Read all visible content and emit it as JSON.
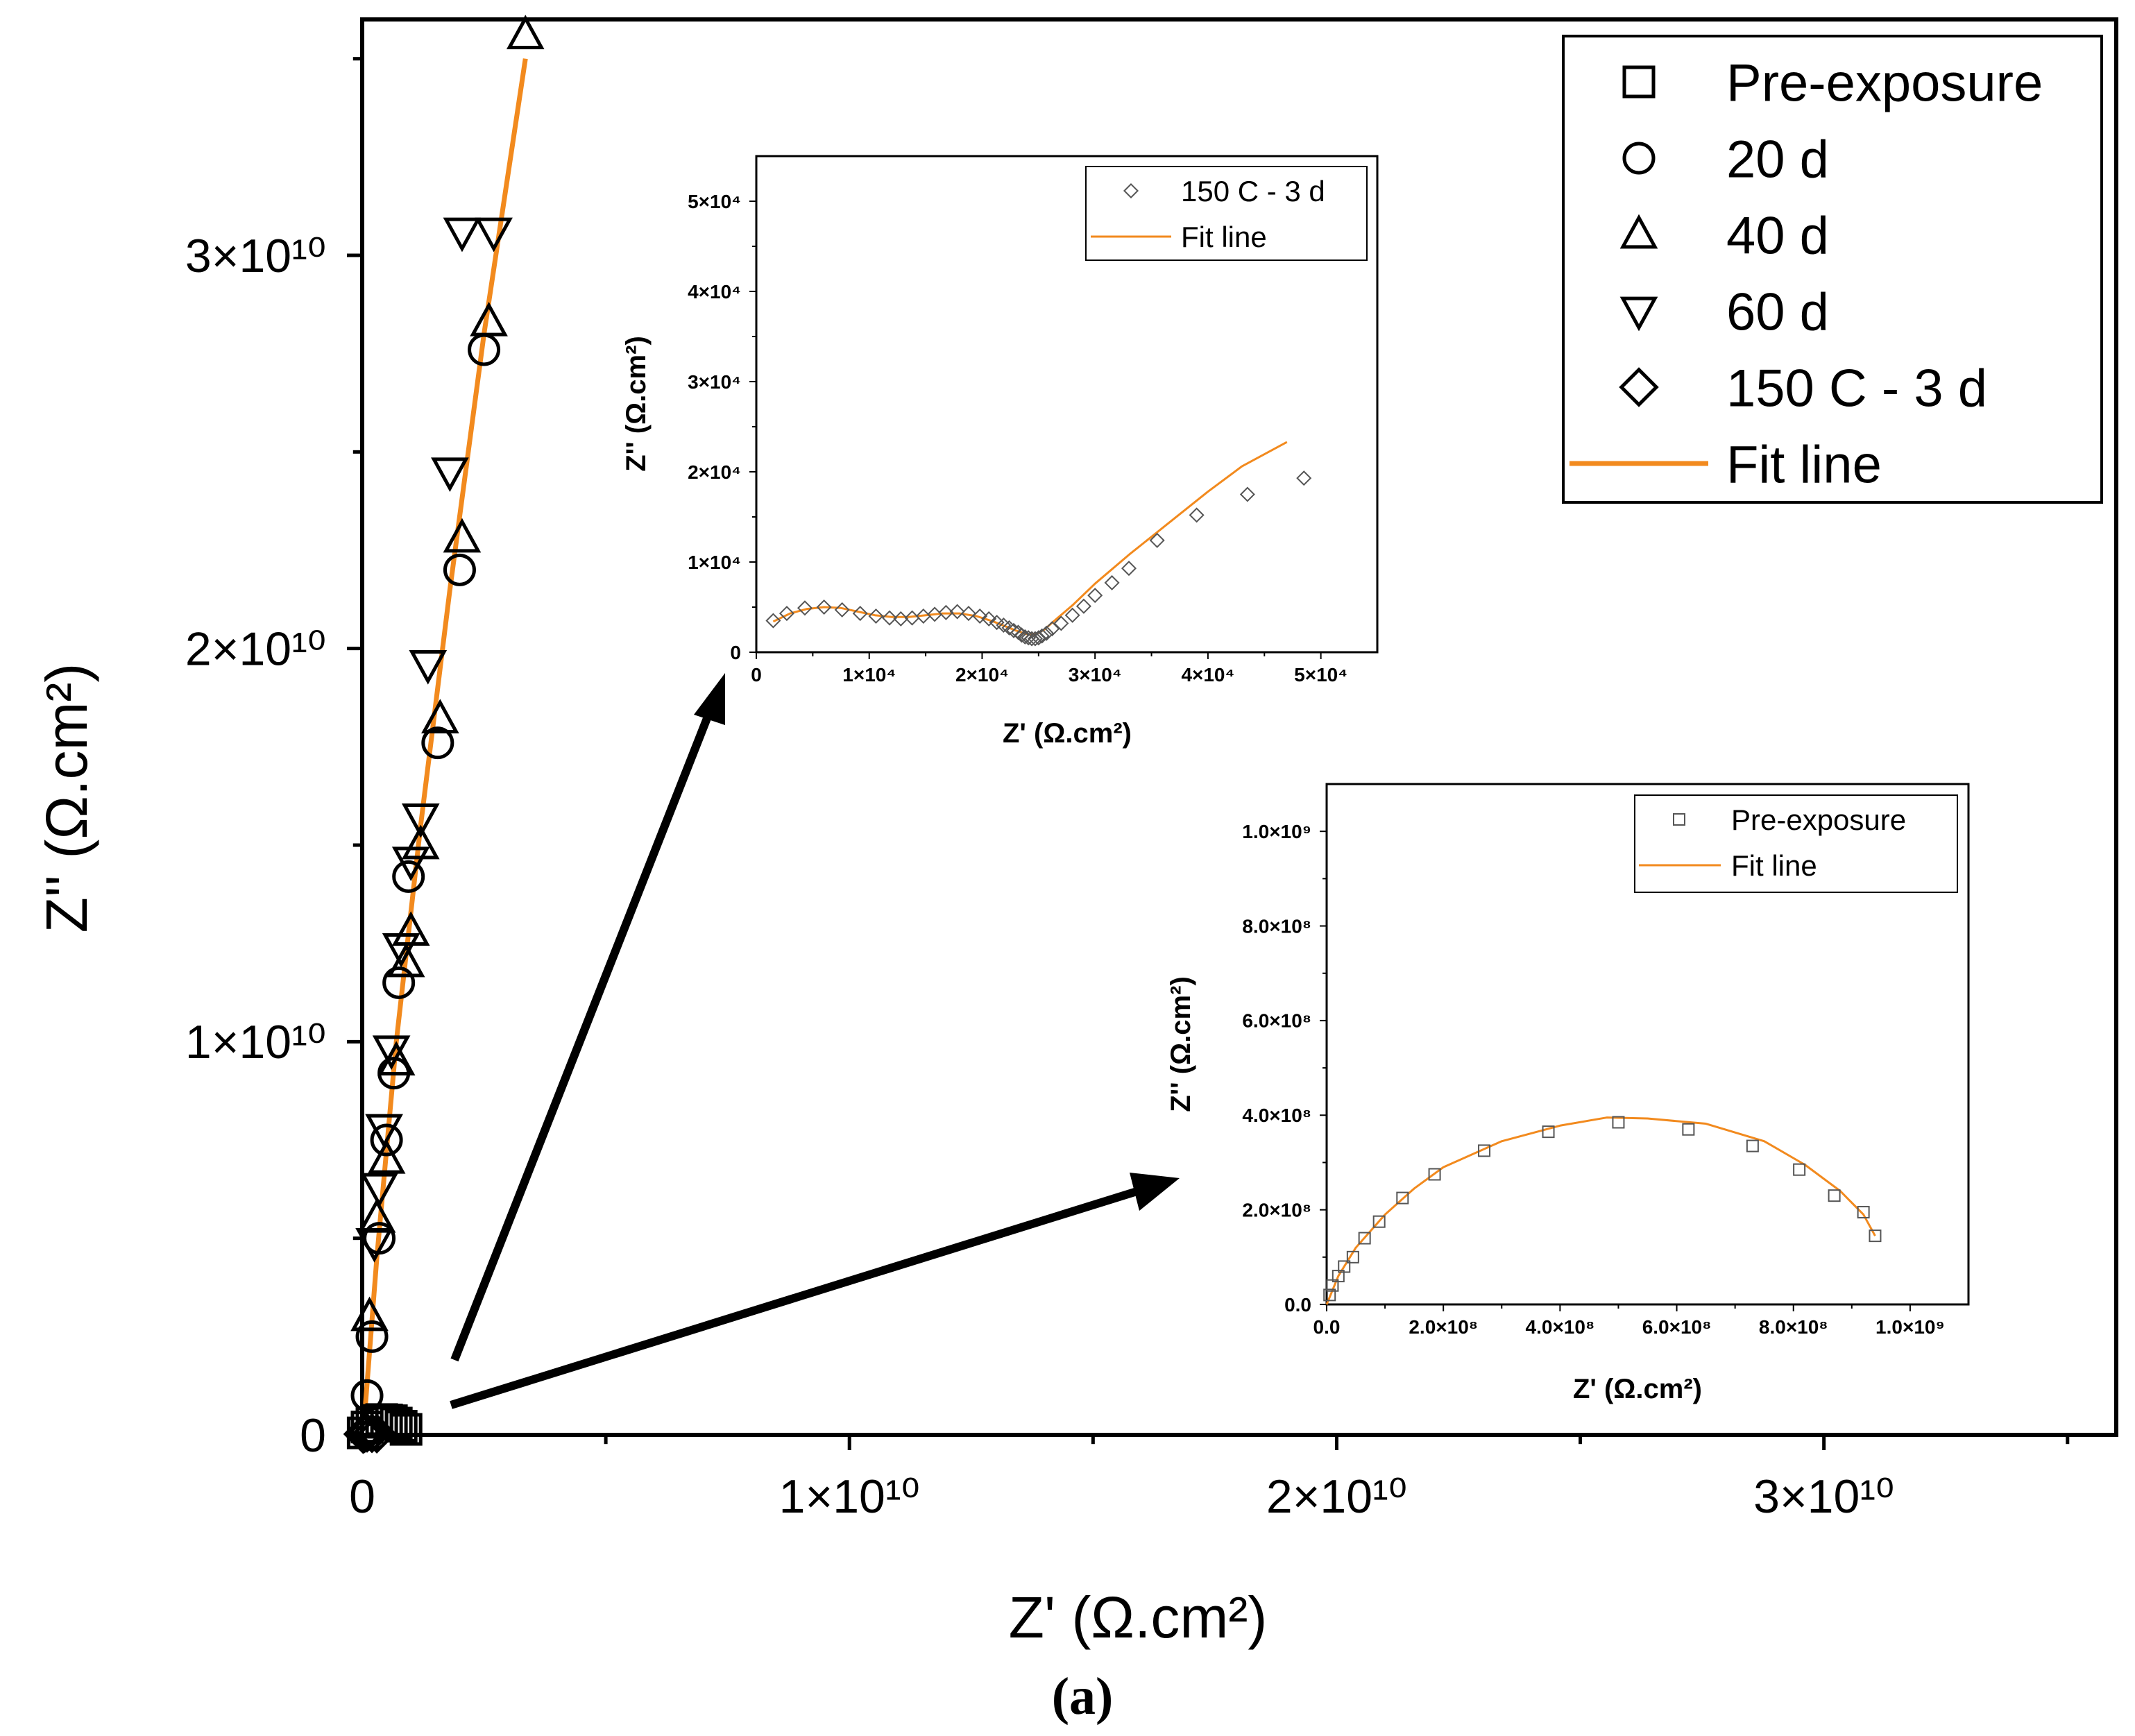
{
  "caption": "(a)",
  "colors": {
    "fit": "#F28A1E",
    "marker": "#000000",
    "inset_marker": "#555555",
    "axis": "#000000",
    "background": "#FFFFFF"
  },
  "chart_data": [
    {
      "id": "main",
      "type": "scatter",
      "title": "",
      "xlabel": "Z' (Ω.cm²)",
      "ylabel": "Z'' (Ω.cm²)",
      "xlim": [
        0,
        36000000000.0
      ],
      "ylim": [
        0,
        36000000000.0
      ],
      "xticks": [
        {
          "value": 0,
          "label": "0"
        },
        {
          "value": 10000000000.0,
          "label": "1×10¹⁰"
        },
        {
          "value": 20000000000.0,
          "label": "2×10¹⁰"
        },
        {
          "value": 30000000000.0,
          "label": "3×10¹⁰"
        }
      ],
      "yticks": [
        {
          "value": 0,
          "label": "0"
        },
        {
          "value": 10000000000.0,
          "label": "1×10¹⁰"
        },
        {
          "value": 20000000000.0,
          "label": "2×10¹⁰"
        },
        {
          "value": 30000000000.0,
          "label": "3×10¹⁰"
        }
      ],
      "legend": {
        "position": "top-right",
        "entries": [
          {
            "label": "Pre-exposure",
            "marker": "square"
          },
          {
            "label": "20 d",
            "marker": "circle"
          },
          {
            "label": "40 d",
            "marker": "triangle-up"
          },
          {
            "label": "60 d",
            "marker": "triangle-down"
          },
          {
            "label": "150 C - 3 d",
            "marker": "diamond"
          },
          {
            "label": "Fit line",
            "marker": "line"
          }
        ]
      },
      "series": [
        {
          "name": "Pre-exposure",
          "marker": "square",
          "x": [
            20000000.0,
            100000000.0,
            200000000.0,
            300000000.0,
            400000000.0,
            500000000.0,
            600000000.0,
            700000000.0,
            800000000.0,
            900000000.0
          ],
          "y": [
            50000000.0,
            200000000.0,
            320000000.0,
            370000000.0,
            390000000.0,
            380000000.0,
            360000000.0,
            300000000.0,
            220000000.0,
            140000000.0
          ]
        },
        {
          "name": "20 d",
          "marker": "circle",
          "x": [
            100000000.0,
            200000000.0,
            350000000.0,
            500000000.0,
            650000000.0,
            750000000.0,
            950000000.0,
            1550000000.0,
            2000000000.0,
            2500000000.0
          ],
          "y": [
            1000000000.0,
            2500000000.0,
            5000000000.0,
            7500000000.0,
            9200000000.0,
            11500000000.0,
            14200000000.0,
            17600000000.0,
            22000000000.0,
            27600000000.0
          ]
        },
        {
          "name": "40 d",
          "marker": "triangle-up",
          "x": [
            150000000.0,
            300000000.0,
            500000000.0,
            700000000.0,
            900000000.0,
            1000000000.0,
            1200000000.0,
            1600000000.0,
            2050000000.0,
            2600000000.0,
            3350000000.0
          ],
          "y": [
            3000000000.0,
            5500000000.0,
            7000000000.0,
            9500000000.0,
            12000000000.0,
            12800000000.0,
            15000000000.0,
            18200000000.0,
            22800000000.0,
            28300000000.0,
            35600000000.0
          ]
        },
        {
          "name": "60 d",
          "marker": "triangle-down",
          "x": [
            250000000.0,
            350000000.0,
            450000000.0,
            600000000.0,
            800000000.0,
            1000000000.0,
            1200000000.0,
            1350000000.0,
            1800000000.0,
            2050000000.0,
            2700000000.0
          ],
          "y": [
            4900000000.0,
            6300000000.0,
            7800000000.0,
            9800000000.0,
            12400000000.0,
            14600000000.0,
            15700000000.0,
            19600000000.0,
            24500000000.0,
            30600000000.0,
            30600000000.0
          ]
        },
        {
          "name": "150 C - 3 d",
          "marker": "diamond",
          "x": [
            20000000.0,
            50000000.0,
            100000000.0,
            200000000.0,
            300000000.0
          ],
          "y": [
            20000000.0,
            40000000.0,
            50000000.0,
            40000000.0,
            30000000.0
          ]
        },
        {
          "name": "Fit line",
          "marker": "line",
          "x": [
            50000000.0,
            300000000.0,
            700000000.0,
            1200000000.0,
            1800000000.0,
            2500000000.0,
            3350000000.0
          ],
          "y": [
            500000000.0,
            4500000000.0,
            10000000000.0,
            15500000000.0,
            21500000000.0,
            28000000000.0,
            35000000000.0
          ]
        }
      ]
    },
    {
      "id": "inset-150c",
      "type": "scatter",
      "title": "",
      "xlabel": "Z' (Ω.cm²)",
      "ylabel": "Z'' (Ω.cm²)",
      "xlim": [
        0,
        55000
      ],
      "ylim": [
        0,
        55000
      ],
      "xticks": [
        {
          "value": 0,
          "label": "0"
        },
        {
          "value": 10000,
          "label": "1×10⁴"
        },
        {
          "value": 20000,
          "label": "2×10⁴"
        },
        {
          "value": 30000,
          "label": "3×10⁴"
        },
        {
          "value": 40000,
          "label": "4×10⁴"
        },
        {
          "value": 50000,
          "label": "5×10⁴"
        }
      ],
      "yticks": [
        {
          "value": 0,
          "label": "0"
        },
        {
          "value": 10000,
          "label": "1×10⁴"
        },
        {
          "value": 20000,
          "label": "2×10⁴"
        },
        {
          "value": 30000,
          "label": "3×10⁴"
        },
        {
          "value": 40000,
          "label": "4×10⁴"
        },
        {
          "value": 50000,
          "label": "5×10⁴"
        }
      ],
      "legend": {
        "position": "top-right",
        "entries": [
          {
            "label": "150 C - 3 d",
            "marker": "diamond"
          },
          {
            "label": "Fit line",
            "marker": "line"
          }
        ]
      },
      "series": [
        {
          "name": "150 C - 3 d",
          "marker": "diamond",
          "x": [
            1500,
            2700,
            4300,
            6000,
            7600,
            9200,
            10600,
            11800,
            12800,
            13800,
            14800,
            15800,
            16800,
            17800,
            18800,
            19800,
            20600,
            21300,
            21900,
            22400,
            22800,
            23200,
            23500,
            23800,
            24100,
            24400,
            24700,
            25000,
            25300,
            25700,
            26200,
            27000,
            28000,
            29000,
            30000,
            31500,
            33000,
            35500,
            39000,
            43500,
            48500
          ],
          "y": [
            3500,
            4300,
            4900,
            5000,
            4700,
            4300,
            4000,
            3800,
            3700,
            3800,
            4000,
            4200,
            4400,
            4500,
            4300,
            4000,
            3700,
            3300,
            3000,
            2700,
            2400,
            2200,
            1900,
            1700,
            1600,
            1500,
            1500,
            1600,
            1800,
            2100,
            2600,
            3200,
            4100,
            5100,
            6300,
            7700,
            9300,
            12400,
            15200,
            17500,
            19300
          ]
        },
        {
          "name": "Fit line",
          "marker": "line",
          "x": [
            1500,
            3000,
            4500,
            6000,
            7500,
            9000,
            10500,
            12000,
            13500,
            15000,
            16500,
            18000,
            19500,
            21000,
            22000,
            23000,
            24000,
            24800,
            25500,
            26500,
            28000,
            30000,
            33000,
            36000,
            40000,
            43000,
            47000
          ],
          "y": [
            3400,
            4300,
            4800,
            5000,
            4900,
            4500,
            4100,
            3900,
            3900,
            4100,
            4300,
            4300,
            4000,
            3400,
            2900,
            2400,
            2000,
            2000,
            2500,
            3600,
            5200,
            7600,
            10800,
            13800,
            17800,
            20600,
            23300
          ]
        }
      ]
    },
    {
      "id": "inset-pre",
      "type": "scatter",
      "title": "",
      "xlabel": "Z' (Ω.cm²)",
      "ylabel": "Z'' (Ω.cm²)",
      "xlim": [
        0,
        1100000000.0
      ],
      "ylim": [
        0,
        1100000000.0
      ],
      "xticks": [
        {
          "value": 0,
          "label": "0.0"
        },
        {
          "value": 200000000.0,
          "label": "2.0×10⁸"
        },
        {
          "value": 400000000.0,
          "label": "4.0×10⁸"
        },
        {
          "value": 600000000.0,
          "label": "6.0×10⁸"
        },
        {
          "value": 800000000.0,
          "label": "8.0×10⁸"
        },
        {
          "value": 1000000000.0,
          "label": "1.0×10⁹"
        }
      ],
      "yticks": [
        {
          "value": 0,
          "label": "0.0"
        },
        {
          "value": 200000000.0,
          "label": "2.0×10⁸"
        },
        {
          "value": 400000000.0,
          "label": "4.0×10⁸"
        },
        {
          "value": 600000000.0,
          "label": "6.0×10⁸"
        },
        {
          "value": 800000000.0,
          "label": "8.0×10⁸"
        },
        {
          "value": 1000000000.0,
          "label": "1.0×10⁹"
        }
      ],
      "legend": {
        "position": "top-right",
        "entries": [
          {
            "label": "Pre-exposure",
            "marker": "square"
          },
          {
            "label": "Fit line",
            "marker": "line"
          }
        ]
      },
      "series": [
        {
          "name": "Pre-exposure",
          "marker": "square",
          "x": [
            5000000,
            10000000,
            20000000,
            30000000,
            45000000,
            65000000,
            90000000,
            130000000,
            185000000,
            270000000,
            380000000,
            500000000,
            620000000,
            730000000,
            810000000,
            870000000,
            920000000,
            940000000
          ],
          "y": [
            20000000,
            40000000,
            60000000,
            80000000,
            100000000,
            140000000,
            175000000,
            225000000,
            275000000,
            325000000,
            365000000,
            385000000,
            370000000,
            335000000,
            285000000,
            230000000,
            195000000,
            145000000
          ]
        },
        {
          "name": "Fit line",
          "marker": "line",
          "x": [
            0,
            20000000,
            50000000,
            100000000,
            150000000,
            200000000,
            300000000,
            400000000,
            480000000,
            550000000,
            650000000,
            750000000,
            820000000,
            880000000,
            920000000,
            940000000
          ],
          "y": [
            0,
            60000000,
            120000000,
            190000000,
            245000000,
            290000000,
            345000000,
            378000000,
            395000000,
            393000000,
            382000000,
            345000000,
            295000000,
            240000000,
            190000000,
            145000000
          ]
        }
      ]
    }
  ]
}
